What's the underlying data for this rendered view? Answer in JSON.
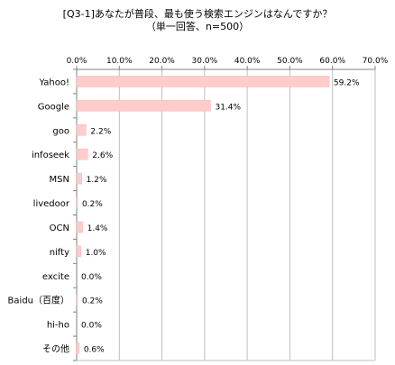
{
  "chart_data": {
    "type": "bar",
    "orientation": "horizontal",
    "title": "[Q3-1]あなたが普段、最も使う検索エンジンはなんですか？",
    "subtitle": "（単一回答、n=500）",
    "categories": [
      "Yahoo!",
      "Google",
      "goo",
      "infoseek",
      "MSN",
      "livedoor",
      "OCN",
      "nifty",
      "excite",
      "Baidu（百度）",
      "hi-ho",
      "その他"
    ],
    "values": [
      59.2,
      31.4,
      2.2,
      2.6,
      1.2,
      0.2,
      1.4,
      1.0,
      0.0,
      0.2,
      0.0,
      0.6
    ],
    "data_labels": [
      "59.2%",
      "31.4%",
      "2.2%",
      "2.6%",
      "1.2%",
      "0.2%",
      "1.4%",
      "1.0%",
      "0.0%",
      "0.2%",
      "0.0%",
      "0.6%"
    ],
    "xlim": [
      0,
      70
    ],
    "x_ticks": [
      "0.0%",
      "10.0%",
      "20.0%",
      "30.0%",
      "40.0%",
      "50.0%",
      "60.0%",
      "70.0%"
    ],
    "grid": true,
    "legend": "none",
    "colors": {
      "bar_fill": "#FFCCCC",
      "bar_stroke": "#F4B6B6",
      "grid": "#BFBFBF",
      "axis": "#808080"
    }
  }
}
